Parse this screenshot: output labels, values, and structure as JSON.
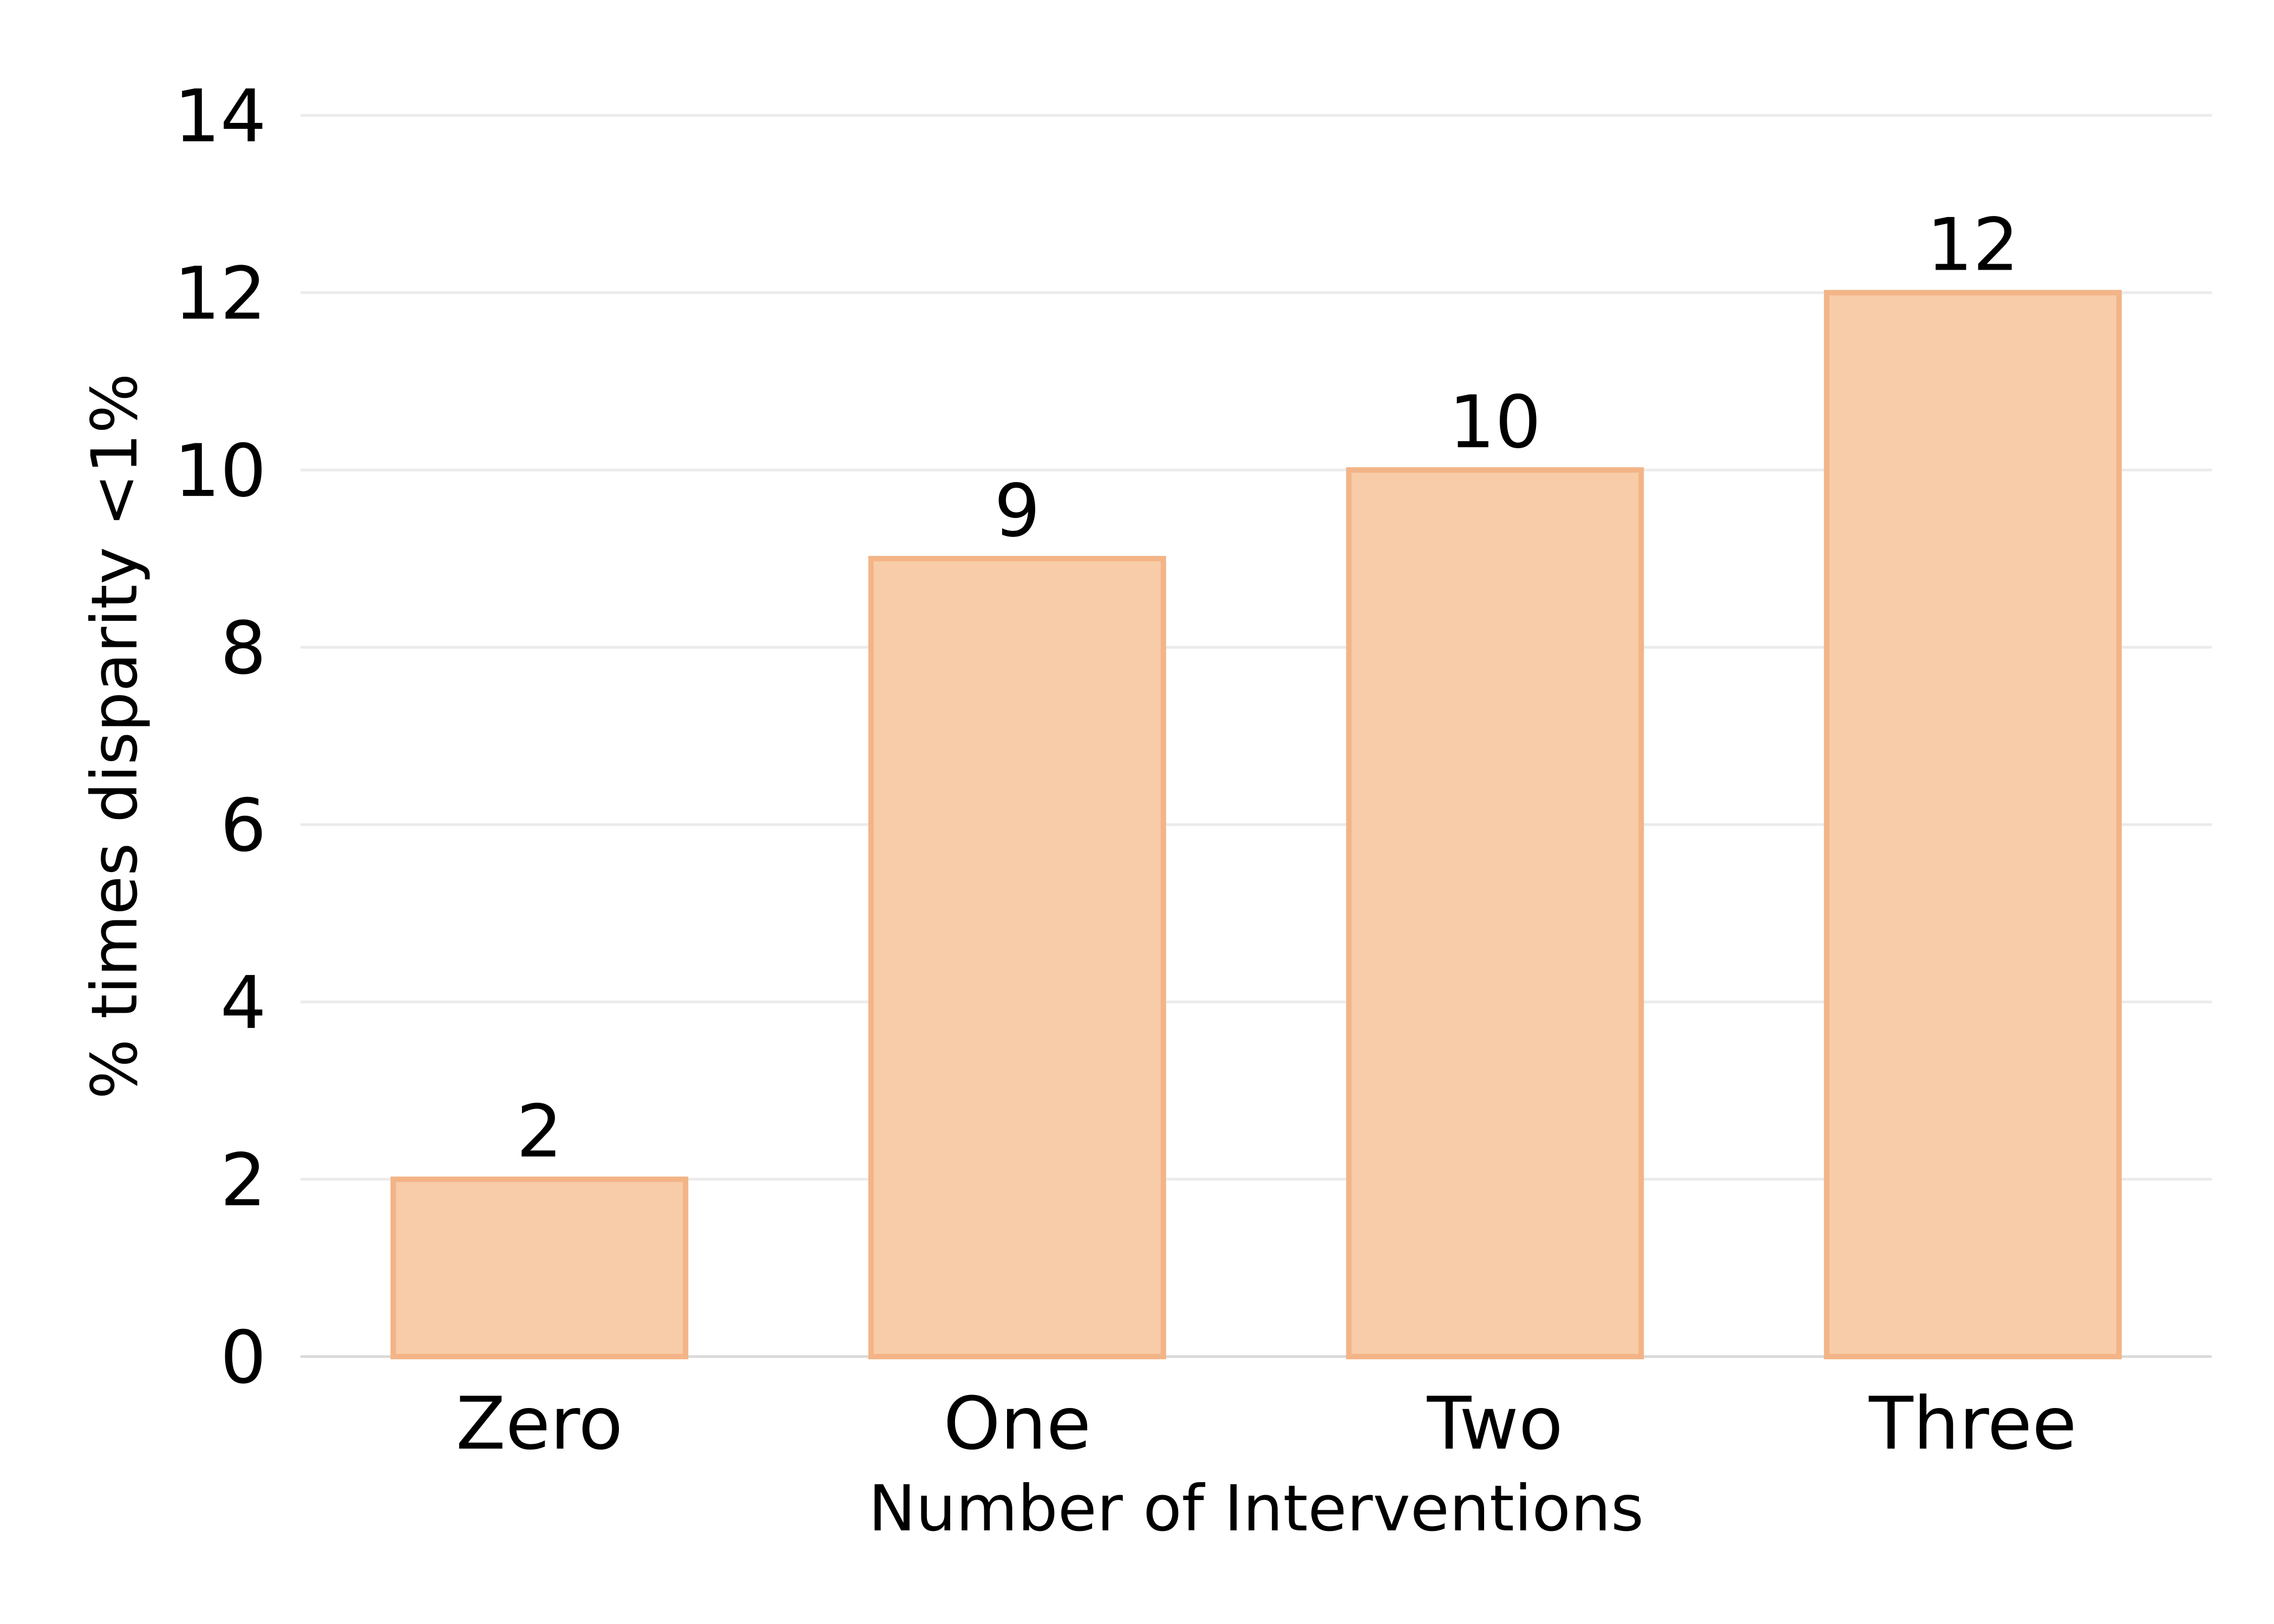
{
  "chart_data": {
    "type": "bar",
    "categories": [
      "Zero",
      "One",
      "Two",
      "Three"
    ],
    "values": [
      2,
      9,
      10,
      12
    ],
    "data_labels": [
      "2",
      "9",
      "10",
      "12"
    ],
    "xlabel": "Number of Interventions",
    "ylabel": "% times disparity <1%",
    "ylim": [
      0,
      14
    ],
    "yticks": [
      0,
      2,
      4,
      6,
      8,
      10,
      12,
      14
    ],
    "grid": "horizontal",
    "colors": {
      "bar_fill": "#f8cca8",
      "bar_edge": "#f3b487",
      "grid": "#ebebeb"
    }
  }
}
